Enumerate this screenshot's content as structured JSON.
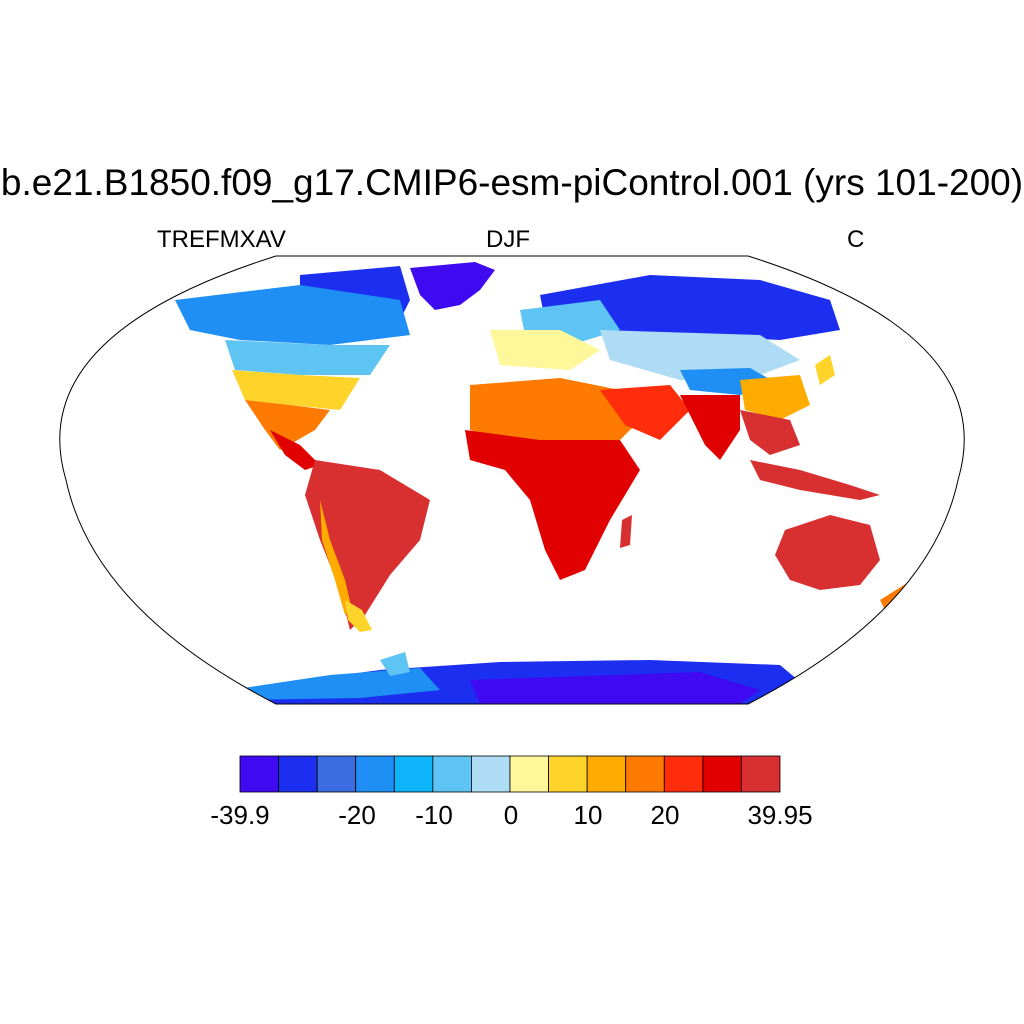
{
  "title": "b.e21.B1850.f09_g17.CMIP6-esm-piControl.001 (yrs 101-200)",
  "left_subtitle": "TREFMXAV",
  "center_subtitle": "DJF",
  "right_subtitle": "C",
  "colorbar": {
    "colors": [
      "#3f0af2",
      "#1c2ff0",
      "#3c6de0",
      "#1f8ef5",
      "#0db4fa",
      "#5ec4f4",
      "#addcf4",
      "#fff79a",
      "#ffd42a",
      "#ffab00",
      "#ff7a00",
      "#ff2d0b",
      "#e00000",
      "#d83030"
    ],
    "labels": [
      "-39.9",
      "-20",
      "-10",
      "0",
      "10",
      "20",
      "39.95"
    ]
  },
  "colors": {
    "ocean": "#ffffff",
    "frame": "#000000"
  }
}
